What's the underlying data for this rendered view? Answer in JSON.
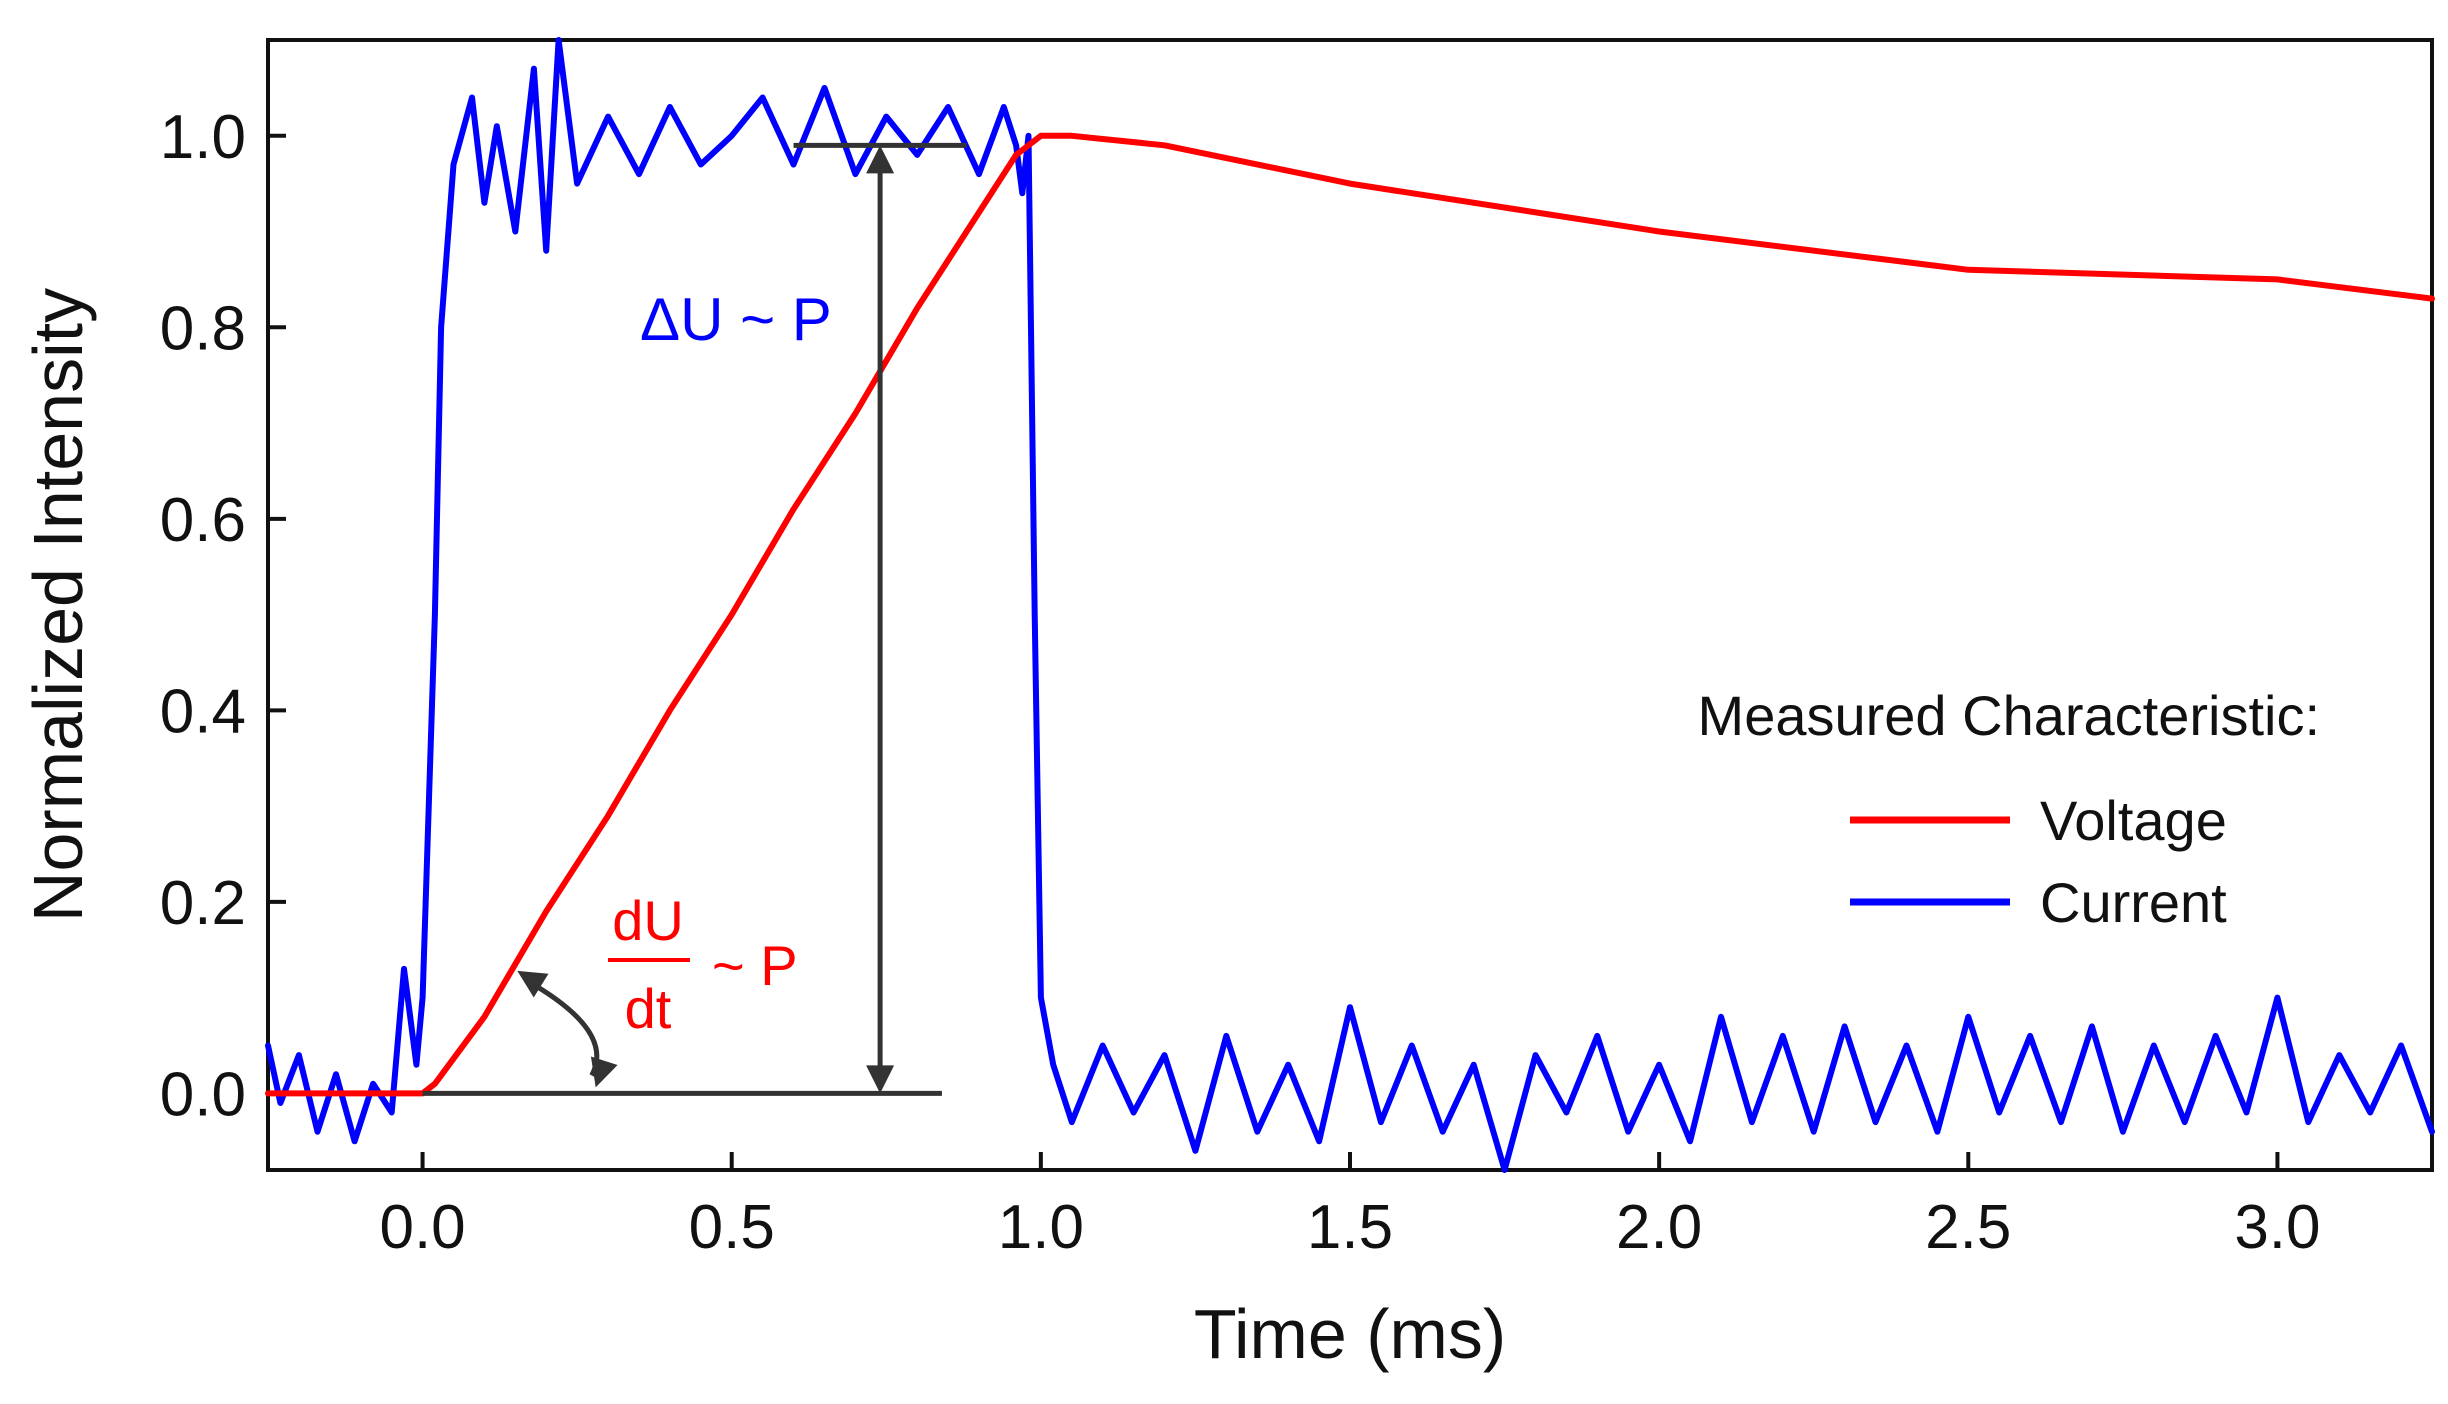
{
  "chart_data": {
    "type": "line",
    "xlabel": "Time (ms)",
    "ylabel": "Normalized Intensity",
    "xlim": [
      -0.25,
      3.25
    ],
    "ylim": [
      -0.08,
      1.1
    ],
    "x_ticks": [
      "0.0",
      "0.5",
      "1.0",
      "1.5",
      "2.0",
      "2.5",
      "3.0"
    ],
    "y_ticks": [
      "0.0",
      "0.2",
      "0.4",
      "0.6",
      "0.8",
      "1.0"
    ],
    "grid": false,
    "legend": {
      "title": "Measured Characteristic:",
      "position": "right",
      "entries": [
        "Voltage",
        "Current"
      ]
    },
    "series": [
      {
        "name": "Voltage",
        "color": "#ff0000",
        "x": [
          -0.25,
          0.0,
          0.02,
          0.1,
          0.2,
          0.3,
          0.4,
          0.5,
          0.6,
          0.7,
          0.8,
          0.9,
          0.96,
          1.0,
          1.05,
          1.2,
          1.5,
          2.0,
          2.5,
          3.0,
          3.25
        ],
        "y": [
          0.0,
          0.0,
          0.01,
          0.08,
          0.19,
          0.29,
          0.4,
          0.5,
          0.61,
          0.71,
          0.82,
          0.92,
          0.98,
          1.0,
          1.0,
          0.99,
          0.95,
          0.9,
          0.86,
          0.85,
          0.83
        ]
      },
      {
        "name": "Current",
        "color": "#0000ff",
        "x": [
          -0.25,
          -0.23,
          -0.2,
          -0.17,
          -0.14,
          -0.11,
          -0.08,
          -0.05,
          -0.03,
          -0.01,
          0.0,
          0.02,
          0.03,
          0.05,
          0.08,
          0.1,
          0.12,
          0.15,
          0.18,
          0.2,
          0.22,
          0.25,
          0.3,
          0.35,
          0.4,
          0.45,
          0.5,
          0.55,
          0.6,
          0.65,
          0.7,
          0.75,
          0.8,
          0.85,
          0.9,
          0.94,
          0.96,
          0.97,
          0.98,
          0.99,
          1.0,
          1.02,
          1.05,
          1.1,
          1.15,
          1.2,
          1.25,
          1.3,
          1.35,
          1.4,
          1.45,
          1.5,
          1.55,
          1.6,
          1.65,
          1.7,
          1.75,
          1.8,
          1.85,
          1.9,
          1.95,
          2.0,
          2.05,
          2.1,
          2.15,
          2.2,
          2.25,
          2.3,
          2.35,
          2.4,
          2.45,
          2.5,
          2.55,
          2.6,
          2.65,
          2.7,
          2.75,
          2.8,
          2.85,
          2.9,
          2.95,
          3.0,
          3.05,
          3.1,
          3.15,
          3.2,
          3.25
        ],
        "y": [
          0.05,
          -0.01,
          0.04,
          -0.04,
          0.02,
          -0.05,
          0.01,
          -0.02,
          0.13,
          0.03,
          0.1,
          0.5,
          0.8,
          0.97,
          1.04,
          0.93,
          1.01,
          0.9,
          1.07,
          0.88,
          1.1,
          0.95,
          1.02,
          0.96,
          1.03,
          0.97,
          1.0,
          1.04,
          0.97,
          1.05,
          0.96,
          1.02,
          0.98,
          1.03,
          0.96,
          1.03,
          0.99,
          0.94,
          1.0,
          0.5,
          0.1,
          0.03,
          -0.03,
          0.05,
          -0.02,
          0.04,
          -0.06,
          0.06,
          -0.04,
          0.03,
          -0.05,
          0.09,
          -0.03,
          0.05,
          -0.04,
          0.03,
          -0.08,
          0.04,
          -0.02,
          0.06,
          -0.04,
          0.03,
          -0.05,
          0.08,
          -0.03,
          0.06,
          -0.04,
          0.07,
          -0.03,
          0.05,
          -0.04,
          0.08,
          -0.02,
          0.06,
          -0.03,
          0.07,
          -0.04,
          0.05,
          -0.03,
          0.06,
          -0.02,
          0.1,
          -0.03,
          0.04,
          -0.02,
          0.05,
          -0.04
        ]
      }
    ],
    "annotations": [
      {
        "text": "ΔU ~ P",
        "color": "#0000ff",
        "x": 0.53,
        "y": 0.8
      },
      {
        "numerator": "dU",
        "denominator": "dt",
        "suffix": "~ P",
        "color": "#ff0000",
        "x": 0.37,
        "y": 0.13
      },
      {
        "type": "baseline",
        "x_start": 0.0,
        "x_end": 0.84,
        "y": 0.0,
        "color": "#333333"
      },
      {
        "type": "topline",
        "x_start": 0.6,
        "x_end": 0.88,
        "y": 0.99,
        "color": "#333333"
      },
      {
        "type": "double-arrow",
        "x": 0.74,
        "y_start": 0.0,
        "y_end": 0.99,
        "color": "#333333"
      },
      {
        "type": "angle-arrow",
        "from": [
          0.15,
          0.13
        ],
        "to": [
          0.28,
          0.0
        ],
        "color": "#333333"
      }
    ]
  }
}
